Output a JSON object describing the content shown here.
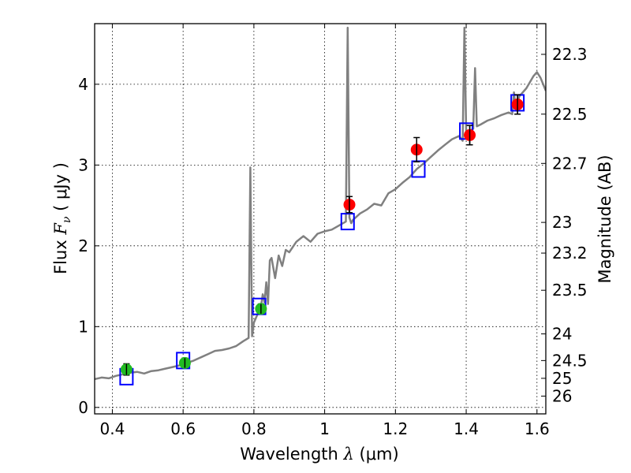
{
  "chart_data": {
    "type": "line",
    "title": "",
    "xlabel": {
      "prefix": "Wavelength  ",
      "symbol": "λ",
      "unit": " (μm)"
    },
    "ylabel": {
      "prefix": "Flux  ",
      "symbol": "F",
      "sub": "ν",
      "unit": "  ( μJy )"
    },
    "y2label": "Magnitude (AB)",
    "xlim": [
      0.35,
      1.625
    ],
    "ylim": [
      -0.08,
      4.75
    ],
    "grid": true,
    "x_ticks": [
      0.4,
      0.6,
      0.8,
      1.0,
      1.2,
      1.4,
      1.6
    ],
    "x_tick_labels": [
      "0.4",
      "0.6",
      "0.8",
      "1",
      "1.2",
      "1.4",
      "1.6"
    ],
    "y_ticks": [
      0,
      1,
      2,
      3,
      4
    ],
    "y_tick_labels": [
      "0",
      "1",
      "2",
      "3",
      "4"
    ],
    "y2_ticks": [
      {
        "label": "22.3",
        "flux": 4.37
      },
      {
        "label": "22.5",
        "flux": 3.63
      },
      {
        "label": "22.7",
        "flux": 3.02
      },
      {
        "label": "23",
        "flux": 2.29
      },
      {
        "label": "23.2",
        "flux": 1.91
      },
      {
        "label": "23.5",
        "flux": 1.45
      },
      {
        "label": "24",
        "flux": 0.91
      },
      {
        "label": "24.5",
        "flux": 0.58
      },
      {
        "label": "25",
        "flux": 0.36
      },
      {
        "label": "26",
        "flux": 0.14
      }
    ],
    "series": [
      {
        "name": "model-spectrum",
        "kind": "line",
        "color": "#808080",
        "x": [
          0.35,
          0.37,
          0.39,
          0.41,
          0.43,
          0.45,
          0.47,
          0.49,
          0.51,
          0.53,
          0.55,
          0.57,
          0.59,
          0.61,
          0.63,
          0.65,
          0.67,
          0.69,
          0.71,
          0.73,
          0.75,
          0.77,
          0.785,
          0.79,
          0.795,
          0.8,
          0.81,
          0.82,
          0.825,
          0.83,
          0.835,
          0.84,
          0.845,
          0.85,
          0.86,
          0.87,
          0.88,
          0.89,
          0.9,
          0.92,
          0.94,
          0.96,
          0.98,
          1.0,
          1.02,
          1.04,
          1.06,
          1.065,
          1.07,
          1.075,
          1.08,
          1.1,
          1.12,
          1.14,
          1.16,
          1.18,
          1.2,
          1.22,
          1.24,
          1.26,
          1.28,
          1.3,
          1.32,
          1.34,
          1.36,
          1.38,
          1.39,
          1.395,
          1.4,
          1.41,
          1.42,
          1.425,
          1.43,
          1.44,
          1.46,
          1.48,
          1.5,
          1.52,
          1.53,
          1.535,
          1.54,
          1.55,
          1.57,
          1.59,
          1.6,
          1.61,
          1.625
        ],
        "y": [
          0.35,
          0.37,
          0.36,
          0.39,
          0.41,
          0.43,
          0.44,
          0.42,
          0.45,
          0.46,
          0.48,
          0.5,
          0.52,
          0.55,
          0.58,
          0.62,
          0.66,
          0.7,
          0.71,
          0.73,
          0.76,
          0.82,
          0.86,
          2.97,
          0.88,
          1.05,
          1.15,
          1.25,
          1.4,
          1.3,
          1.55,
          1.28,
          1.82,
          1.85,
          1.6,
          1.88,
          1.75,
          1.95,
          1.92,
          2.05,
          2.12,
          2.05,
          2.15,
          2.18,
          2.2,
          2.25,
          2.3,
          4.7,
          2.35,
          2.28,
          2.32,
          2.4,
          2.45,
          2.52,
          2.5,
          2.65,
          2.7,
          2.78,
          2.85,
          2.95,
          3.02,
          3.1,
          3.18,
          3.25,
          3.32,
          3.36,
          3.3,
          4.7,
          3.38,
          3.42,
          3.45,
          4.2,
          3.48,
          3.5,
          3.55,
          3.58,
          3.62,
          3.65,
          3.63,
          3.9,
          3.7,
          3.85,
          3.95,
          4.1,
          4.15,
          4.08,
          3.92
        ]
      },
      {
        "name": "model-photometry",
        "kind": "open-square",
        "color": "#0000ff",
        "x": [
          0.44,
          0.6,
          0.815,
          1.065,
          1.265,
          1.4,
          1.545
        ],
        "y": [
          0.38,
          0.58,
          1.25,
          2.3,
          2.95,
          3.42,
          3.77
        ]
      },
      {
        "name": "observed-optical",
        "kind": "filled-circle",
        "color": "#22bb22",
        "x": [
          0.44,
          0.605,
          0.82
        ],
        "y": [
          0.47,
          0.55,
          1.22
        ],
        "yerr": [
          0.07,
          0.06,
          0.06
        ]
      },
      {
        "name": "observed-near-ir",
        "kind": "filled-circle",
        "color": "#ff0000",
        "x": [
          1.07,
          1.26,
          1.41,
          1.545
        ],
        "y": [
          2.51,
          3.19,
          3.37,
          3.75
        ],
        "yerr": [
          0.1,
          0.15,
          0.12,
          0.12
        ]
      }
    ]
  }
}
